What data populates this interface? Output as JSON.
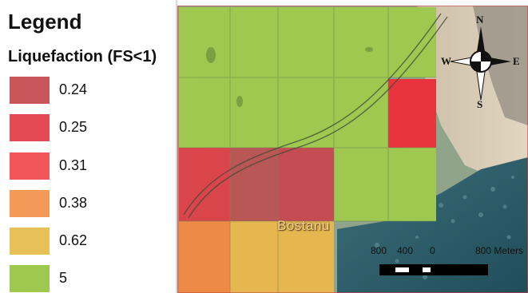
{
  "legend": {
    "title": "Legend",
    "subtitle": "Liquefaction (FS<1)",
    "items": [
      {
        "label": "0.24",
        "color": "#c8555a"
      },
      {
        "label": "0.25",
        "color": "#e54a54"
      },
      {
        "label": "0.31",
        "color": "#f2565a"
      },
      {
        "label": "0.38",
        "color": "#f39a58"
      },
      {
        "label": "0.62",
        "color": "#e6c158"
      },
      {
        "label": "5",
        "color": "#9ec84f"
      }
    ]
  },
  "map": {
    "town_label": "Bostanu",
    "scale_bar": {
      "labels": [
        "800",
        "400",
        "0",
        "800 Meters"
      ]
    },
    "north_arrow": {
      "n": "N",
      "s": "S",
      "e": "E",
      "w": "W",
      "icon": "compass-rose-icon"
    }
  }
}
